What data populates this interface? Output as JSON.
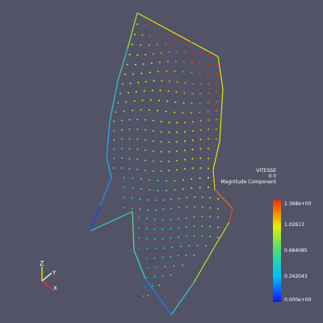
{
  "legend": {
    "title_lines": [
      "VITESSE",
      "0 0",
      "Magnitude Component"
    ],
    "ticks": [
      "1.368e+00",
      "1.02613",
      "0.684085",
      "0.342043",
      "0.000e+00"
    ]
  },
  "axes": {
    "z": "Z",
    "y": "Y",
    "x": "X"
  },
  "colors": {
    "background": "#525366",
    "scale": [
      "#0a12ff",
      "#00c0ff",
      "#40e07a",
      "#e8ee00",
      "#ff2a00"
    ]
  },
  "icons": {
    "axes": "orientation-axes-icon"
  }
}
